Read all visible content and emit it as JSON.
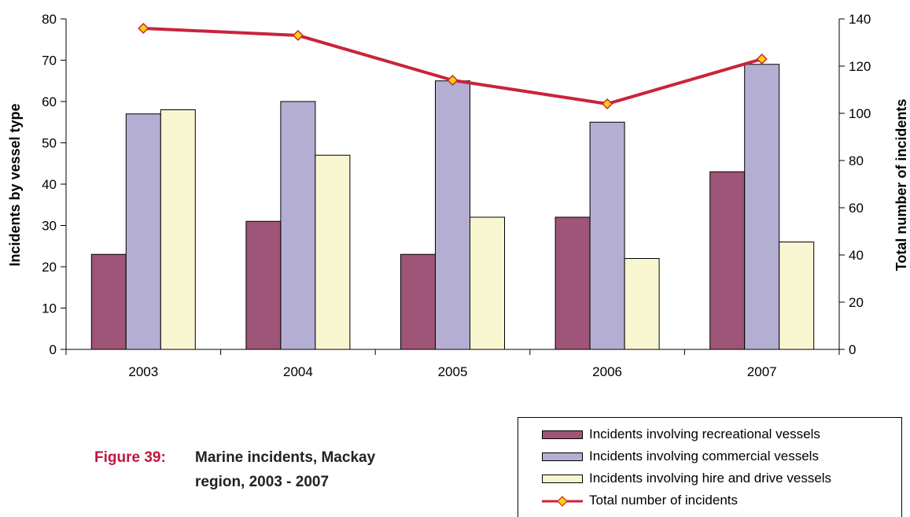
{
  "chart_data": {
    "type": "bar",
    "categories": [
      "2003",
      "2004",
      "2005",
      "2006",
      "2007"
    ],
    "series": [
      {
        "name": "Incidents involving recreational vessels",
        "type": "bar",
        "axis": "left",
        "color": "#9e5577",
        "values": [
          23,
          31,
          23,
          32,
          43
        ]
      },
      {
        "name": "Incidents involving commercial vessels",
        "type": "bar",
        "axis": "left",
        "color": "#b5aed3",
        "values": [
          57,
          60,
          65,
          55,
          69
        ]
      },
      {
        "name": "Incidents involving hire and drive vessels",
        "type": "bar",
        "axis": "left",
        "color": "#f8f6d0",
        "values": [
          58,
          47,
          32,
          22,
          26
        ]
      },
      {
        "name": "Total number of incidents",
        "type": "line",
        "axis": "right",
        "color": "#c8243b",
        "marker_color": "#ffd200",
        "values": [
          136,
          133,
          114,
          104,
          123
        ]
      }
    ],
    "ylabel": "Incidents by vessel type",
    "ylim": [
      0,
      80
    ],
    "y_ticks": [
      0,
      10,
      20,
      30,
      40,
      50,
      60,
      70,
      80
    ],
    "y2label": "Total number of incidents",
    "y2lim": [
      0,
      140
    ],
    "y2_ticks": [
      0,
      20,
      40,
      60,
      80,
      100,
      120,
      140
    ],
    "grid": false,
    "legend_position": "bottom-right"
  },
  "caption": {
    "label": "Figure 39:",
    "line1": "Marine incidents, Mackay",
    "line2": "region, 2003 - 2007"
  }
}
